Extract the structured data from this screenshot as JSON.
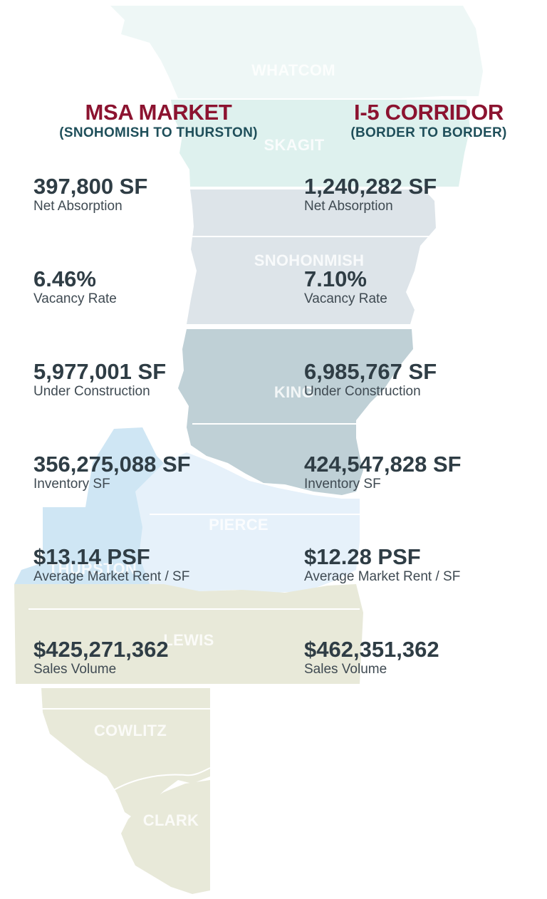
{
  "counties": {
    "whatcom": "WHATCOM",
    "skagit": "SKAGIT",
    "snohomish": "SNOHONMISH",
    "king": "KING",
    "pierce": "PIERCE",
    "thurston": "THURSTON",
    "lewis": "LEWIS",
    "cowlitz": "COWLITZ",
    "clark": "CLARK"
  },
  "colors": {
    "whatcom": "#eef7f6",
    "skagit": "#def1ee",
    "snohomish": "#dde4e9",
    "king": "#bfd0d6",
    "pierce": "#e6f1fa",
    "thurston": "#cfe6f4",
    "southwest": "#e8e9d9",
    "title_accent": "#8c1330",
    "subtitle": "#1f4f5a"
  },
  "msa": {
    "title": "MSA MARKET",
    "subtitle": "(SNOHOMISH TO THURSTON)",
    "stats": [
      {
        "value": "397,800 SF",
        "label": "Net Absorption"
      },
      {
        "value": "6.46%",
        "label": "Vacancy Rate"
      },
      {
        "value": "5,977,001 SF",
        "label": "Under Construction"
      },
      {
        "value": "356,275,088 SF",
        "label": "Inventory SF"
      },
      {
        "value": "$13.14 PSF",
        "label": "Average Market Rent / SF"
      },
      {
        "value": "$425,271,362",
        "label": "Sales Volume"
      }
    ]
  },
  "i5": {
    "title": "I-5 CORRIDOR",
    "subtitle": "(BORDER TO BORDER)",
    "stats": [
      {
        "value": "1,240,282 SF",
        "label": "Net Absorption"
      },
      {
        "value": "7.10%",
        "label": "Vacancy Rate"
      },
      {
        "value": "6,985,767 SF",
        "label": "Under Construction"
      },
      {
        "value": "424,547,828 SF",
        "label": "Inventory SF"
      },
      {
        "value": "$12.28 PSF",
        "label": "Average Market Rent / SF"
      },
      {
        "value": "$462,351,362",
        "label": "Sales Volume"
      }
    ]
  }
}
